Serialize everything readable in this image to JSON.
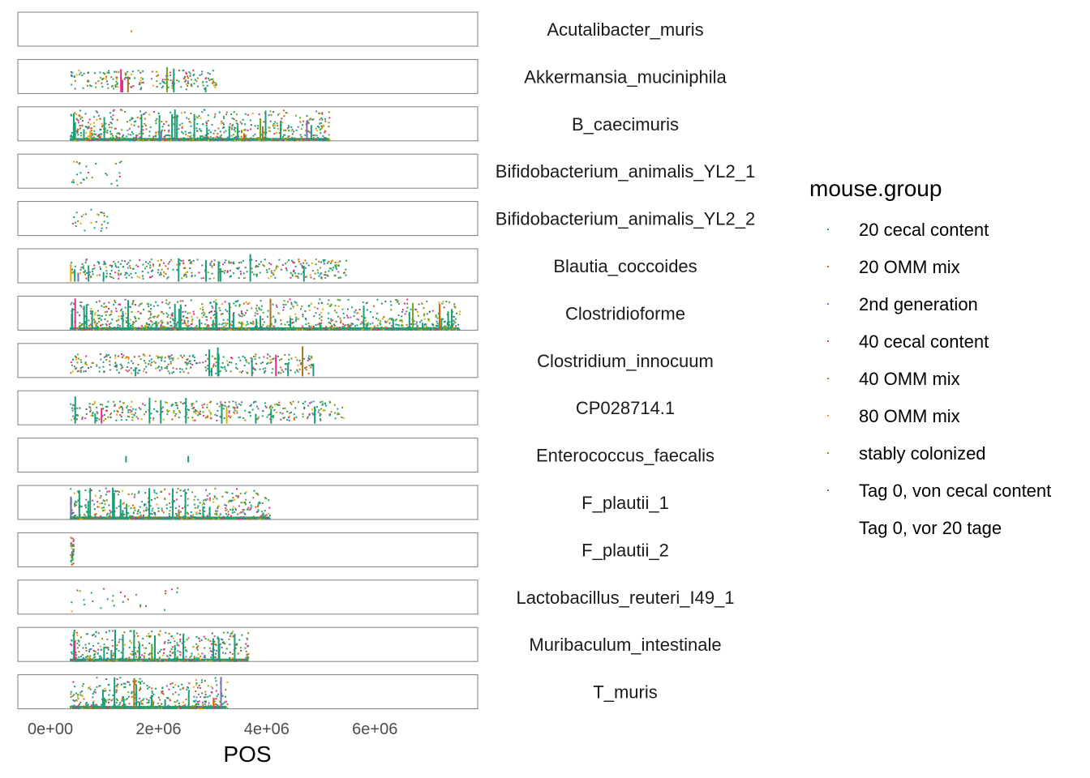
{
  "chart_data": {
    "type": "scatter",
    "xlabel": "POS",
    "ylabel": "",
    "xlim": [
      -600000,
      7900000
    ],
    "x_ticks": [
      {
        "value": 0,
        "label": "0e+00"
      },
      {
        "value": 2000000,
        "label": "2e+06"
      },
      {
        "value": 4000000,
        "label": "4e+06"
      },
      {
        "value": 6000000,
        "label": "6e+06"
      }
    ],
    "legend": {
      "title": "mouse.group",
      "position": "right",
      "entries": [
        {
          "label": "20 cecal content",
          "color": "#1B9E77"
        },
        {
          "label": "20 OMM mix",
          "color": "#D95F02"
        },
        {
          "label": "2nd generation",
          "color": "#7570B3"
        },
        {
          "label": "40 cecal content",
          "color": "#E7298A"
        },
        {
          "label": "40 OMM mix",
          "color": "#66A61E"
        },
        {
          "label": "80 OMM mix",
          "color": "#E6AB02"
        },
        {
          "label": "stably colonized",
          "color": "#A6761D"
        },
        {
          "label": "Tag 0, von cecal content",
          "color": "#666666"
        },
        {
          "label": "Tag 0, vor 20 tage",
          "color": "#FFFFFF"
        }
      ]
    },
    "facets": [
      {
        "name": "Acutalibacter_muris",
        "genome_length": 0,
        "density": "single",
        "points": [
          1500000
        ]
      },
      {
        "name": "Akkermansia_muciniphila",
        "genome_length": 2700000,
        "density": "moderate"
      },
      {
        "name": "B_caecimuris",
        "genome_length": 4800000,
        "density": "dense"
      },
      {
        "name": "Bifidobacterium_animalis_YL2_1",
        "genome_length": 1000000,
        "density": "sparse"
      },
      {
        "name": "Bifidobacterium_animalis_YL2_2",
        "genome_length": 700000,
        "density": "sparse"
      },
      {
        "name": "Blautia_coccoides",
        "genome_length": 5100000,
        "density": "moderate"
      },
      {
        "name": "Clostridioforme",
        "genome_length": 7200000,
        "density": "dense"
      },
      {
        "name": "Clostridium_innocuum",
        "genome_length": 4500000,
        "density": "moderate"
      },
      {
        "name": "CP028714.1",
        "genome_length": 5050000,
        "density": "moderate"
      },
      {
        "name": "Enterococcus_faecalis",
        "genome_length": 0,
        "density": "single",
        "points": [
          1400000,
          2550000
        ]
      },
      {
        "name": "F_plautii_1",
        "genome_length": 3700000,
        "density": "dense"
      },
      {
        "name": "F_plautii_2",
        "genome_length": 60000,
        "density": "narrow"
      },
      {
        "name": "Lactobacillus_reuteri_I49_1",
        "genome_length": 2000000,
        "density": "sparse"
      },
      {
        "name": "Muribaculum_intestinale",
        "genome_length": 3300000,
        "density": "dense"
      },
      {
        "name": "T_muris",
        "genome_length": 2900000,
        "density": "dense"
      }
    ]
  }
}
